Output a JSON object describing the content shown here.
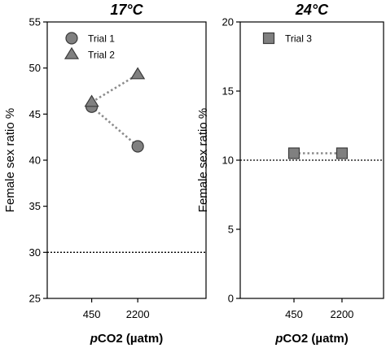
{
  "chart_data": [
    {
      "type": "scatter",
      "title": "17°C",
      "xlabel_italic": "p",
      "xlabel_rest": "CO2 (µatm)",
      "ylabel": "Female sex ratio %",
      "categories": [
        "450",
        "2200"
      ],
      "ylim": [
        25,
        55
      ],
      "yticks": [
        25,
        30,
        35,
        40,
        45,
        50,
        55
      ],
      "reference_line": 30,
      "grid": false,
      "legend_position": "top-left",
      "series": [
        {
          "name": "Trial 1",
          "marker": "circle",
          "values": [
            45.8,
            41.5
          ],
          "color": "#808080"
        },
        {
          "name": "Trial 2",
          "marker": "triangle",
          "values": [
            46.3,
            49.3
          ],
          "color": "#808080"
        }
      ]
    },
    {
      "type": "scatter",
      "title": "24°C",
      "xlabel_italic": "p",
      "xlabel_rest": "CO2 (µatm)",
      "ylabel": "Female sex ratio %",
      "categories": [
        "450",
        "2200"
      ],
      "ylim": [
        0,
        20
      ],
      "yticks": [
        0,
        5,
        10,
        15,
        20
      ],
      "reference_line": 10,
      "grid": false,
      "legend_position": "top-left",
      "series": [
        {
          "name": "Trial 3",
          "marker": "square",
          "values": [
            10.5,
            10.5
          ],
          "color": "#808080"
        }
      ]
    }
  ]
}
